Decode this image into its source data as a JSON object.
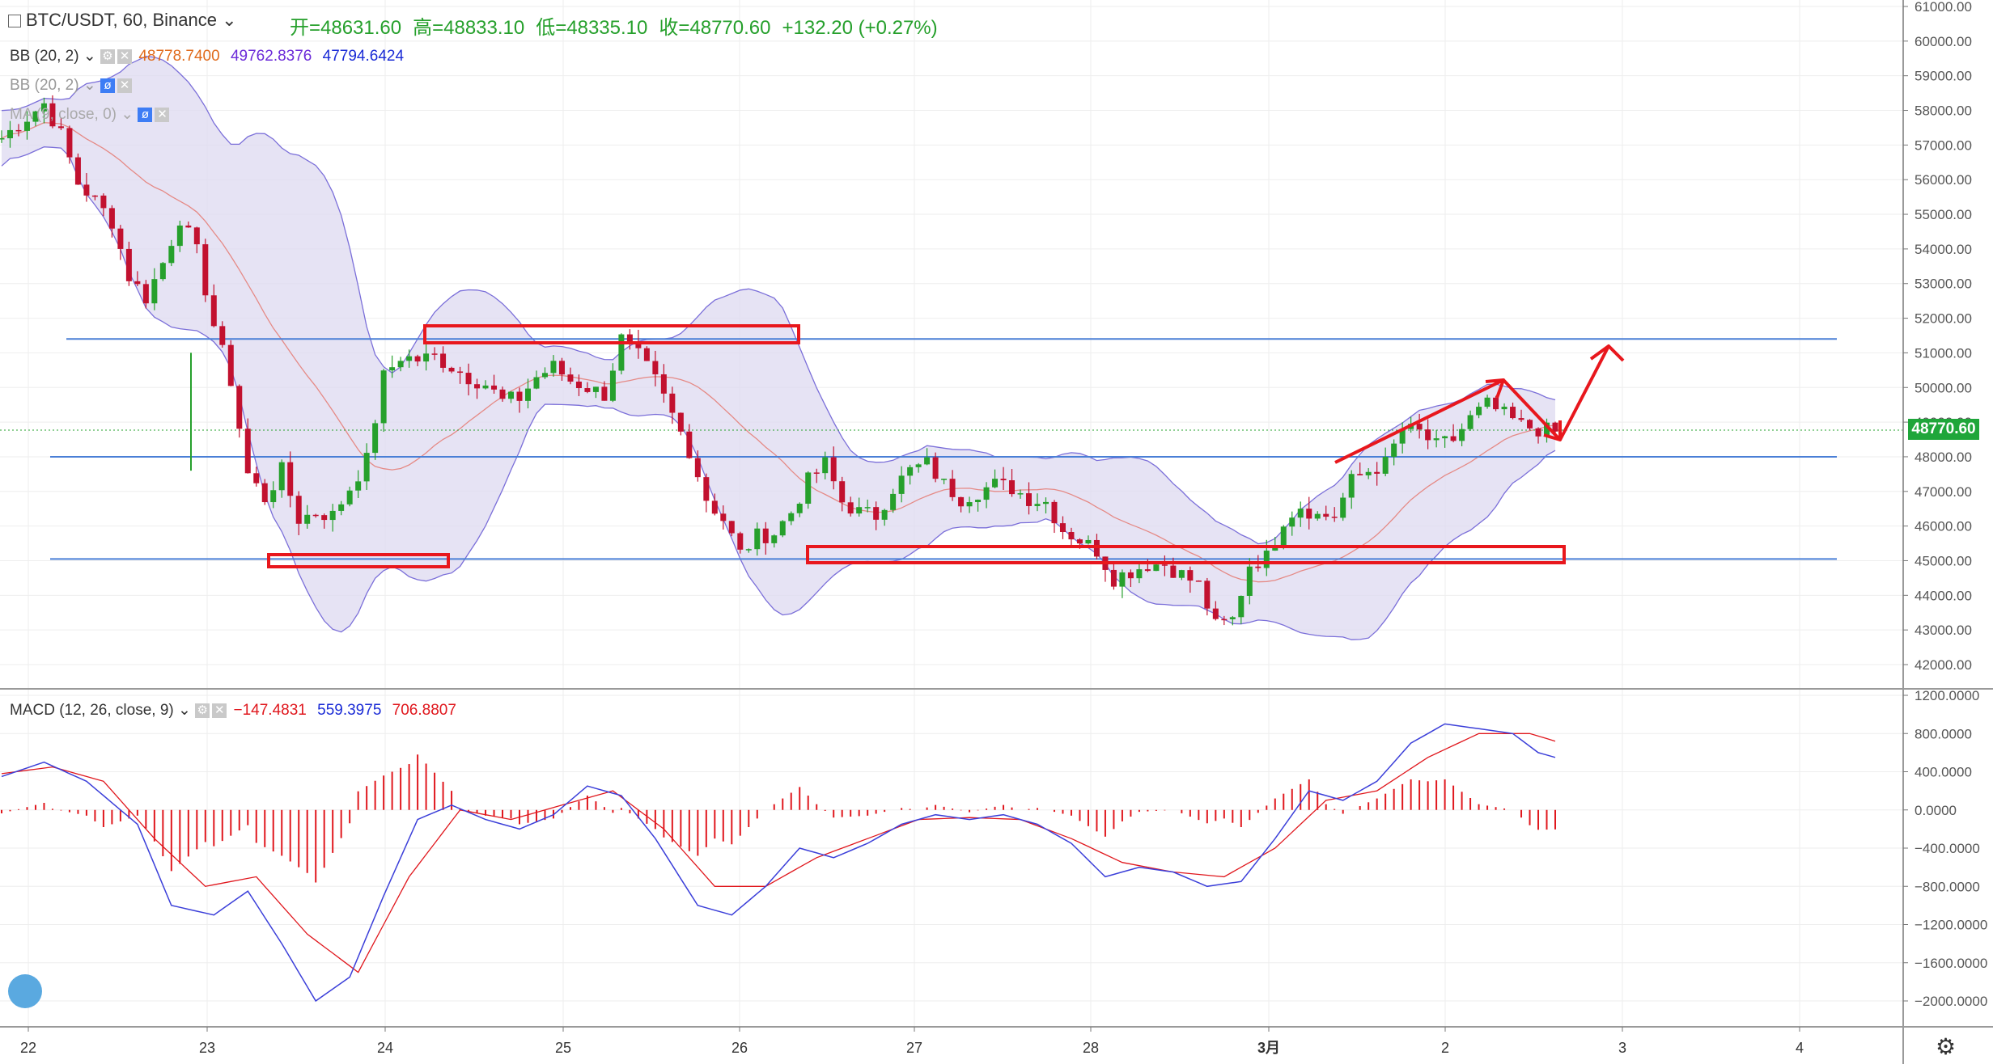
{
  "header": {
    "symbol": "BTC/USDT, 60, Binance",
    "open": "开=48631.60",
    "high": "高=48833.10",
    "low": "低=48335.10",
    "close": "收=48770.60",
    "change": "+132.20 (+0.27%)"
  },
  "indicators": {
    "bb1": {
      "label": "BB (20, 2)",
      "v1": "48778.7400",
      "v2": "49762.8376",
      "v3": "47794.6424"
    },
    "bb2": {
      "label": "BB (20, 2)"
    },
    "ma": {
      "label": "MA (9, close, 0)"
    }
  },
  "macd": {
    "label": "MACD (12, 26, close, 9)",
    "hist": "−147.4831",
    "macd": "559.3975",
    "signal": "706.8807"
  },
  "colors": {
    "up": "#26a02c",
    "down": "#c2112f",
    "band": "#ded9f0",
    "band_line": "#7b6fd9",
    "hline": "#4a7fd6",
    "box": "#e8171d",
    "grid": "#eeeeee"
  },
  "current_price": "48770.60",
  "chart_data": [
    {
      "type": "candlestick",
      "y_axis_labels": [
        "61000.00",
        "60000.00",
        "59000.00",
        "58000.00",
        "57000.00",
        "56000.00",
        "55000.00",
        "54000.00",
        "53000.00",
        "52000.00",
        "51000.00",
        "50000.00",
        "49000.00",
        "48000.00",
        "47000.00",
        "46000.00",
        "45000.00",
        "44000.00",
        "43000.00",
        "42000.00"
      ],
      "x_axis_labels": [
        "22",
        "23",
        "24",
        "25",
        "26",
        "27",
        "28",
        "3月",
        "2",
        "3",
        "4"
      ],
      "ylim": [
        41600,
        61200
      ],
      "close_path": [
        [
          0,
          57200
        ],
        [
          3,
          57800
        ],
        [
          5,
          58200
        ],
        [
          7,
          57300
        ],
        [
          9,
          55900
        ],
        [
          11,
          55400
        ],
        [
          13,
          54800
        ],
        [
          15,
          53200
        ],
        [
          17,
          52600
        ],
        [
          19,
          53600
        ],
        [
          21,
          54900
        ],
        [
          23,
          53900
        ],
        [
          25,
          51800
        ],
        [
          27,
          50200
        ],
        [
          29,
          47500
        ],
        [
          31,
          46800
        ],
        [
          33,
          47600
        ],
        [
          35,
          46200
        ],
        [
          37,
          46400
        ],
        [
          39,
          46300
        ],
        [
          41,
          47100
        ],
        [
          43,
          47900
        ],
        [
          45,
          50300
        ],
        [
          47,
          50900
        ],
        [
          49,
          50800
        ],
        [
          51,
          50900
        ],
        [
          53,
          50600
        ],
        [
          55,
          50300
        ],
        [
          57,
          50100
        ],
        [
          59,
          49600
        ],
        [
          61,
          49700
        ],
        [
          63,
          50300
        ],
        [
          65,
          50600
        ],
        [
          67,
          50200
        ],
        [
          69,
          50000
        ],
        [
          71,
          49800
        ],
        [
          73,
          51400
        ],
        [
          75,
          50900
        ],
        [
          77,
          50200
        ],
        [
          79,
          49200
        ],
        [
          81,
          48200
        ],
        [
          83,
          46800
        ],
        [
          85,
          46200
        ],
        [
          87,
          45200
        ],
        [
          89,
          45700
        ],
        [
          91,
          45800
        ],
        [
          93,
          46400
        ],
        [
          95,
          47300
        ],
        [
          97,
          47800
        ],
        [
          99,
          46700
        ],
        [
          101,
          46400
        ],
        [
          103,
          46300
        ],
        [
          105,
          47100
        ],
        [
          107,
          47600
        ],
        [
          109,
          47800
        ],
        [
          111,
          47200
        ],
        [
          113,
          46800
        ],
        [
          115,
          47000
        ],
        [
          117,
          47200
        ],
        [
          119,
          47100
        ],
        [
          121,
          46800
        ],
        [
          123,
          46700
        ],
        [
          125,
          45900
        ],
        [
          127,
          45600
        ],
        [
          129,
          45300
        ],
        [
          131,
          44500
        ],
        [
          133,
          44700
        ],
        [
          135,
          44900
        ],
        [
          137,
          44900
        ],
        [
          139,
          44600
        ],
        [
          141,
          44300
        ],
        [
          143,
          43100
        ],
        [
          145,
          43300
        ],
        [
          147,
          44900
        ],
        [
          149,
          45100
        ],
        [
          151,
          46200
        ],
        [
          153,
          46600
        ],
        [
          155,
          46300
        ],
        [
          157,
          46300
        ],
        [
          159,
          47300
        ],
        [
          161,
          47600
        ],
        [
          163,
          47800
        ],
        [
          165,
          48800
        ],
        [
          167,
          48700
        ],
        [
          169,
          48300
        ],
        [
          171,
          48500
        ],
        [
          173,
          49100
        ],
        [
          175,
          49500
        ],
        [
          177,
          49200
        ],
        [
          179,
          48900
        ],
        [
          181,
          48800
        ],
        [
          183,
          48700
        ]
      ],
      "horizontal_levels": [
        51400,
        48000,
        45050
      ],
      "series": [
        {
          "name": "BB (20, 2)"
        }
      ]
    },
    {
      "type": "macd",
      "y_axis_labels": [
        "1200.0000",
        "800.0000",
        "400.0000",
        "0.0000",
        "−400.0000",
        "−800.0000",
        "−1200.0000",
        "−1600.0000",
        "−2000.0000"
      ],
      "ylim": [
        -2200,
        1300
      ],
      "macd_path": [
        [
          0,
          350
        ],
        [
          5,
          500
        ],
        [
          10,
          300
        ],
        [
          16,
          -150
        ],
        [
          20,
          -1000
        ],
        [
          25,
          -1100
        ],
        [
          29,
          -850
        ],
        [
          33,
          -1400
        ],
        [
          37,
          -2000
        ],
        [
          41,
          -1750
        ],
        [
          45,
          -900
        ],
        [
          49,
          -100
        ],
        [
          53,
          50
        ],
        [
          57,
          -100
        ],
        [
          61,
          -200
        ],
        [
          65,
          -50
        ],
        [
          69,
          250
        ],
        [
          73,
          150
        ],
        [
          77,
          -300
        ],
        [
          82,
          -1000
        ],
        [
          86,
          -1100
        ],
        [
          90,
          -800
        ],
        [
          94,
          -400
        ],
        [
          98,
          -500
        ],
        [
          102,
          -350
        ],
        [
          106,
          -150
        ],
        [
          110,
          -50
        ],
        [
          114,
          -100
        ],
        [
          118,
          -50
        ],
        [
          122,
          -150
        ],
        [
          126,
          -350
        ],
        [
          130,
          -700
        ],
        [
          134,
          -600
        ],
        [
          138,
          -650
        ],
        [
          142,
          -800
        ],
        [
          146,
          -750
        ],
        [
          150,
          -300
        ],
        [
          154,
          200
        ],
        [
          158,
          100
        ],
        [
          162,
          300
        ],
        [
          166,
          700
        ],
        [
          170,
          900
        ],
        [
          174,
          850
        ],
        [
          178,
          800
        ],
        [
          181,
          600
        ],
        [
          183,
          550
        ]
      ],
      "signal_path": [
        [
          0,
          380
        ],
        [
          6,
          450
        ],
        [
          12,
          300
        ],
        [
          18,
          -300
        ],
        [
          24,
          -800
        ],
        [
          30,
          -700
        ],
        [
          36,
          -1300
        ],
        [
          42,
          -1700
        ],
        [
          48,
          -700
        ],
        [
          54,
          0
        ],
        [
          60,
          -100
        ],
        [
          66,
          50
        ],
        [
          72,
          200
        ],
        [
          78,
          -200
        ],
        [
          84,
          -800
        ],
        [
          90,
          -800
        ],
        [
          96,
          -500
        ],
        [
          102,
          -300
        ],
        [
          108,
          -100
        ],
        [
          114,
          -80
        ],
        [
          120,
          -100
        ],
        [
          126,
          -300
        ],
        [
          132,
          -550
        ],
        [
          138,
          -650
        ],
        [
          144,
          -700
        ],
        [
          150,
          -400
        ],
        [
          156,
          100
        ],
        [
          162,
          200
        ],
        [
          168,
          550
        ],
        [
          174,
          800
        ],
        [
          180,
          800
        ],
        [
          183,
          720
        ]
      ]
    }
  ]
}
